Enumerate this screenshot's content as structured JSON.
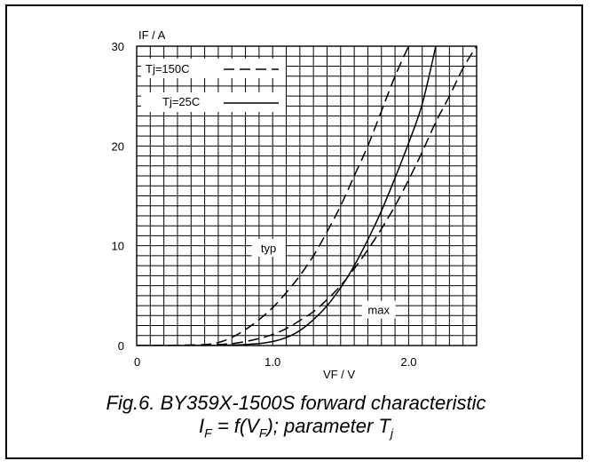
{
  "chart_data": {
    "type": "line",
    "xlabel": "VF / V",
    "ylabel": "IF / A",
    "xlim": [
      0,
      2.5
    ],
    "ylim": [
      0,
      30
    ],
    "x_ticks": [
      {
        "value": 0,
        "label": "0"
      },
      {
        "value": 1.0,
        "label": "1.0"
      },
      {
        "value": 2.0,
        "label": "2.0"
      }
    ],
    "y_ticks": [
      {
        "value": 0,
        "label": "0"
      },
      {
        "value": 10,
        "label": "10"
      },
      {
        "value": 20,
        "label": "20"
      },
      {
        "value": 30,
        "label": "30"
      }
    ],
    "grid": true,
    "legend": [
      {
        "label": "Tj=150C",
        "style": "dashed"
      },
      {
        "label": "Tj=25C",
        "style": "solid"
      }
    ],
    "series": [
      {
        "name": "Tj=150C",
        "group": "typ",
        "style": "dashed",
        "x": [
          0,
          0.3,
          0.5,
          0.6,
          0.7,
          0.8,
          0.9,
          1.0,
          1.1,
          1.2,
          1.3,
          1.4,
          1.5,
          1.6,
          1.7,
          1.8,
          1.9,
          2.0
        ],
        "y": [
          0,
          0.02,
          0.1,
          0.3,
          0.8,
          1.6,
          2.6,
          3.8,
          5.3,
          7.0,
          9.0,
          11.4,
          14.0,
          17.0,
          20.0,
          23.5,
          27.0,
          30.0
        ]
      },
      {
        "name": "Tj=25C",
        "group": "max",
        "style": "solid",
        "x": [
          0,
          0.5,
          0.7,
          0.8,
          0.9,
          1.0,
          1.1,
          1.2,
          1.3,
          1.4,
          1.5,
          1.6,
          1.7,
          1.8,
          1.9,
          2.0,
          2.1,
          2.2
        ],
        "y": [
          0,
          0.01,
          0.05,
          0.1,
          0.2,
          0.4,
          0.8,
          1.5,
          2.6,
          4.0,
          5.8,
          8.0,
          10.6,
          13.5,
          16.8,
          20.3,
          24.2,
          30.0
        ]
      },
      {
        "name": "Tj=150C",
        "group": "max",
        "style": "dashed",
        "x": [
          0,
          0.5,
          0.6,
          0.7,
          0.8,
          0.9,
          1.0,
          1.1,
          1.2,
          1.3,
          1.4,
          1.5,
          1.6,
          1.7,
          1.8,
          1.9,
          2.0,
          2.1,
          2.2,
          2.3,
          2.4,
          2.5
        ],
        "y": [
          0,
          0.05,
          0.1,
          0.2,
          0.4,
          0.7,
          1.1,
          1.7,
          2.5,
          3.4,
          4.6,
          6.0,
          7.7,
          9.6,
          11.7,
          14.0,
          16.6,
          19.4,
          22.4,
          25.0,
          27.8,
          30.0
        ]
      }
    ],
    "annotations": [
      {
        "text": "typ",
        "x": 0.97,
        "y": 9.8
      },
      {
        "text": "max",
        "x": 1.78,
        "y": 3.6
      }
    ]
  },
  "caption": {
    "line1": "Fig.6.   BY359X-1500S forward characteristic",
    "line2_pre": "I",
    "line2_sub1": "F",
    "line2_mid": " = f(V",
    "line2_sub2": "F",
    "line2_post": "); parameter T",
    "line2_sub3": "j"
  }
}
